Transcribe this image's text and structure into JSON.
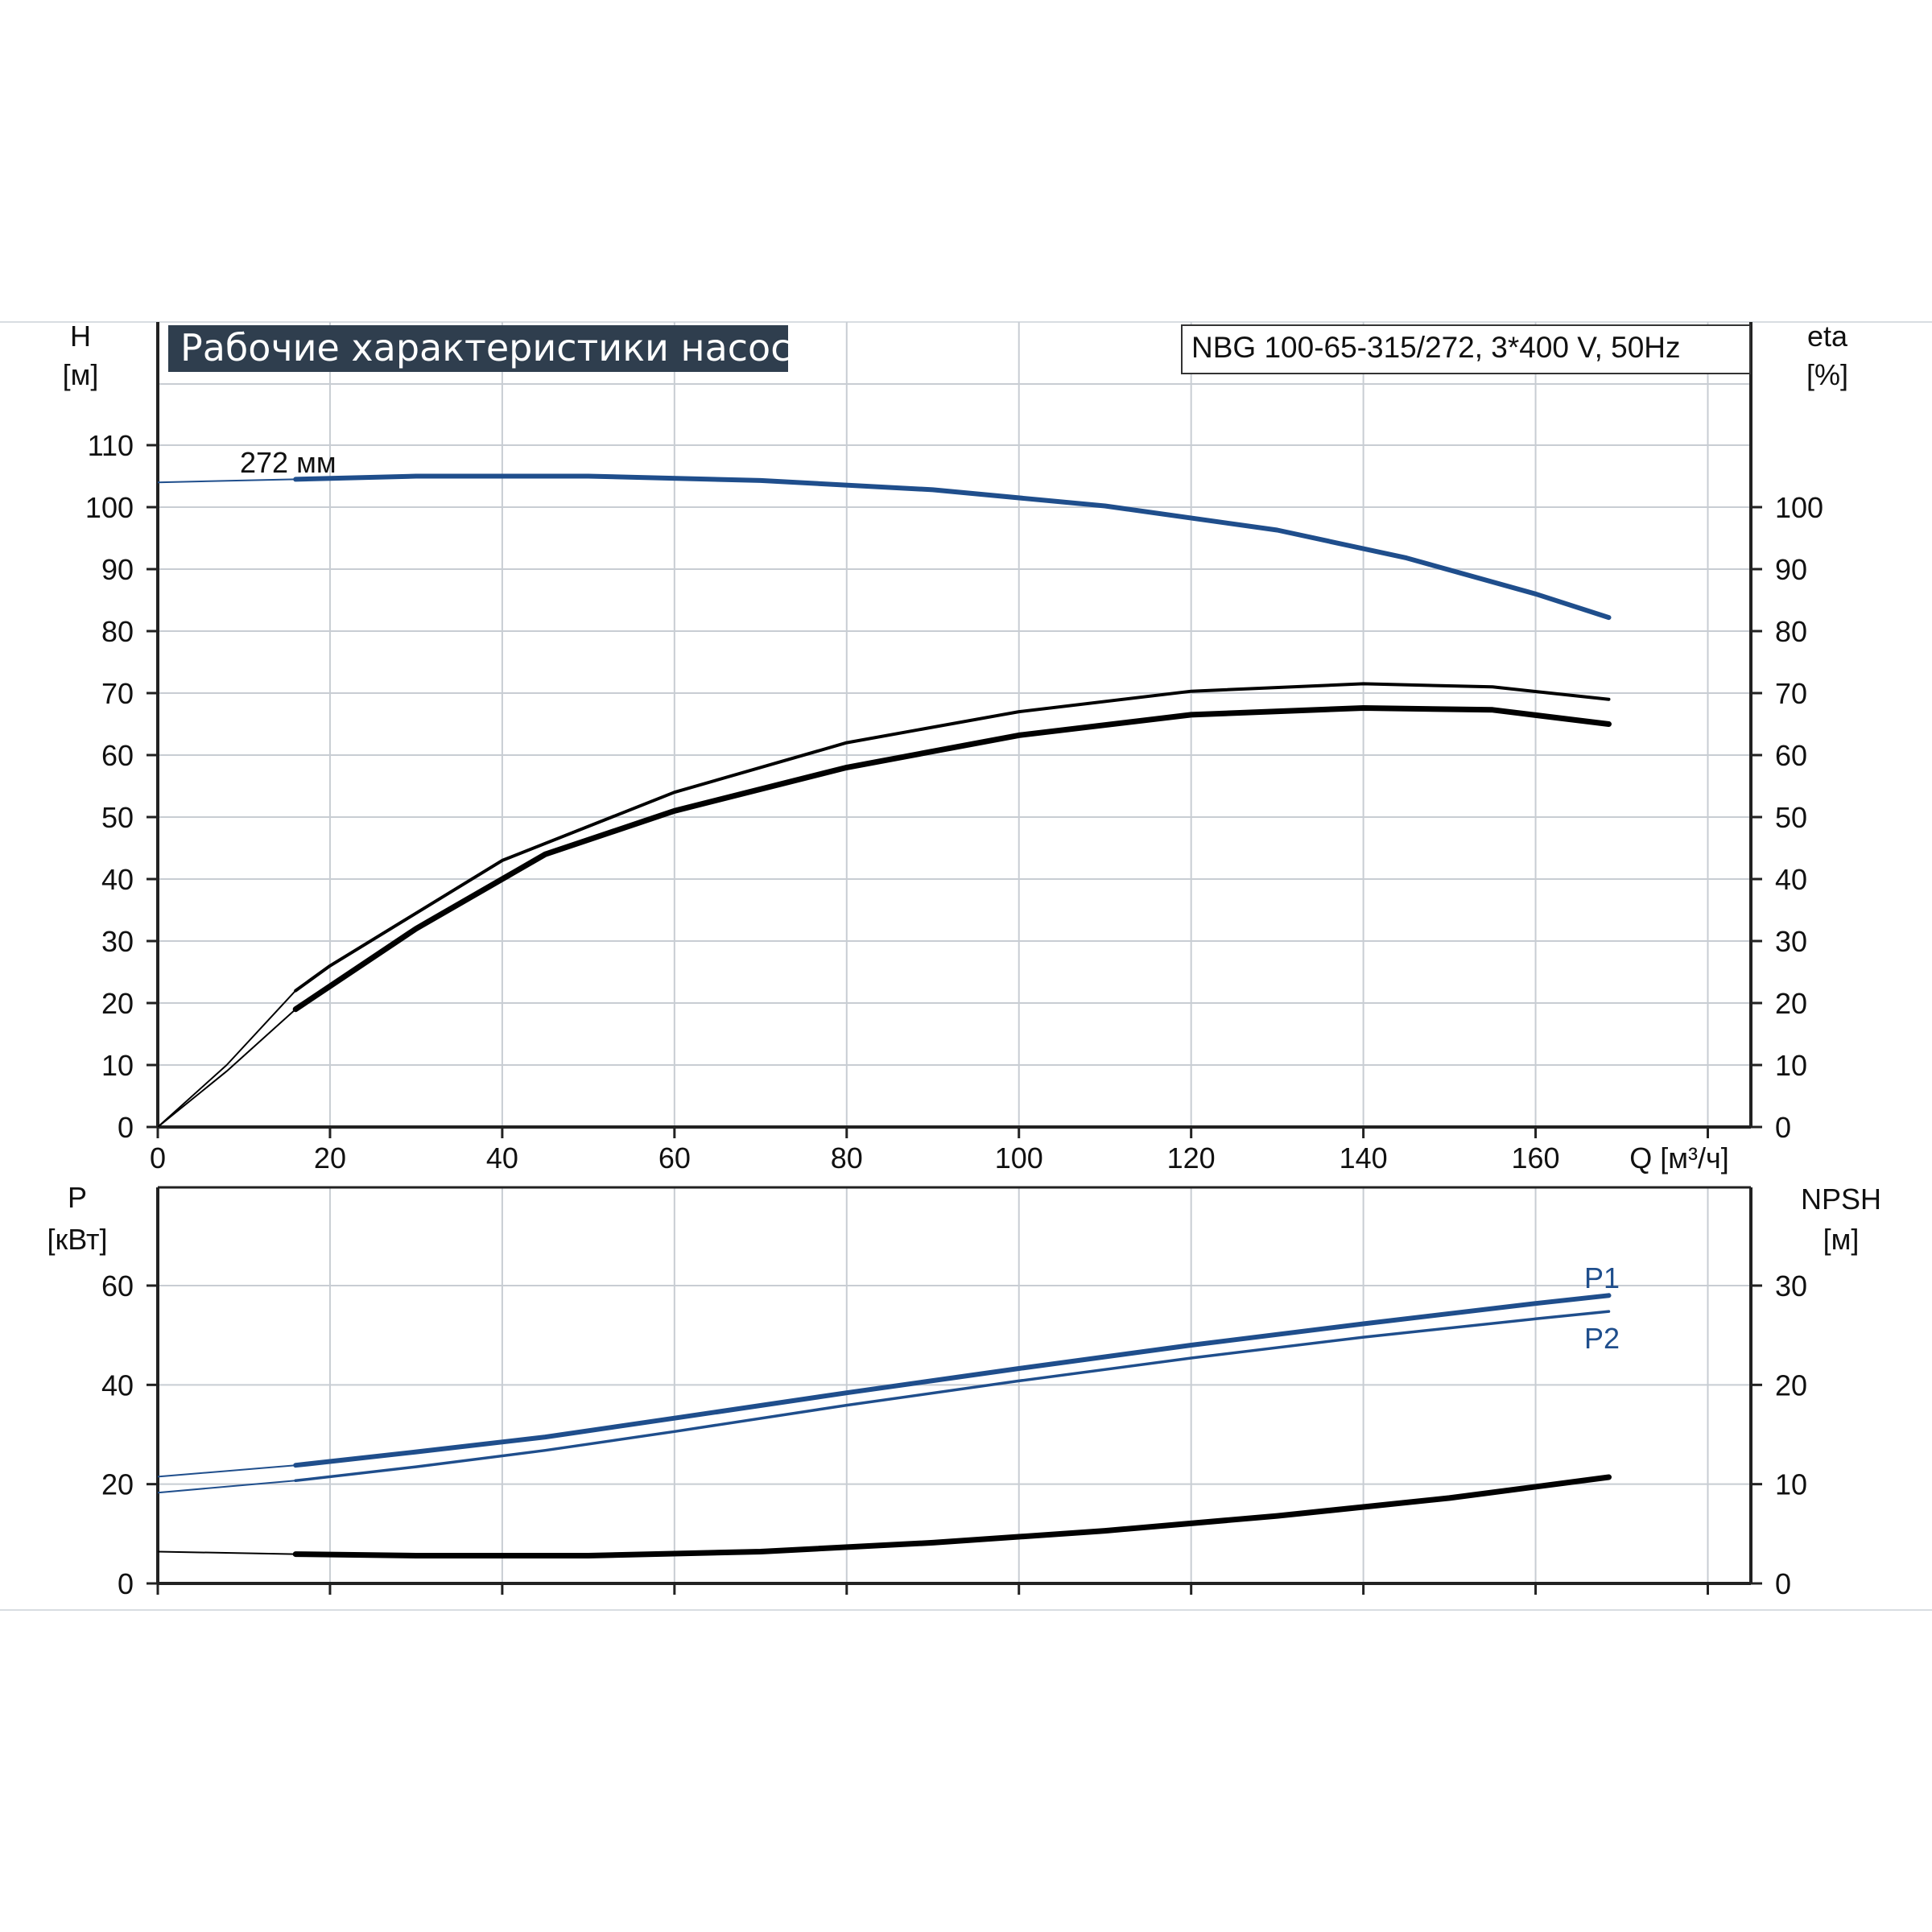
{
  "title": "Рабочие характеристики насоса",
  "model": "NBG 100-65-315/272, 3*400 V, 50Hz",
  "colors": {
    "blue": "#1f4e8c",
    "black": "#000000",
    "grid": "#c8cdd3",
    "title_bg": "#2f3e4e"
  },
  "chart_data": [
    {
      "id": "upper",
      "type": "line",
      "x_axis": {
        "label": "Q [м³/ч]",
        "range": [
          0,
          185
        ],
        "ticks": [
          0,
          20,
          40,
          60,
          80,
          100,
          120,
          140,
          160
        ],
        "extra_grid": [
          180
        ]
      },
      "y_left": {
        "label_top": "H",
        "label_unit": "[м]",
        "range": [
          0,
          120
        ],
        "ticks": [
          0,
          10,
          20,
          30,
          40,
          50,
          60,
          70,
          80,
          90,
          100,
          110
        ]
      },
      "y_right": {
        "label_top": "eta",
        "label_unit": "[%]",
        "range": [
          0,
          120
        ],
        "ticks": [
          0,
          10,
          20,
          30,
          40,
          50,
          60,
          70,
          80,
          90,
          100
        ]
      },
      "grid": true,
      "annotations": [
        {
          "text": "272 мм",
          "x": 10,
          "y": 107
        }
      ],
      "series": [
        {
          "axis": "left",
          "color": "blue",
          "thin": [
            [
              0,
              104
            ],
            [
              16,
              104.5
            ]
          ],
          "thick": [
            [
              16,
              104.5
            ],
            [
              30,
              105
            ],
            [
              50,
              105
            ],
            [
              70,
              104.3
            ],
            [
              90,
              102.8
            ],
            [
              110,
              100.2
            ],
            [
              130,
              96.3
            ],
            [
              145,
              91.8
            ],
            [
              160,
              86
            ],
            [
              168.5,
              82.2
            ]
          ]
        },
        {
          "axis": "right",
          "color": "black",
          "thin": [
            [
              0,
              0
            ],
            [
              8,
              10
            ],
            [
              16,
              22
            ]
          ],
          "thick": [
            [
              16,
              22
            ],
            [
              20,
              26
            ],
            [
              40,
              43
            ],
            [
              60,
              54
            ],
            [
              80,
              62
            ],
            [
              100,
              67
            ],
            [
              120,
              70.3
            ],
            [
              140,
              71.5
            ],
            [
              155,
              71
            ],
            [
              168.5,
              69
            ]
          ],
          "width": 4
        },
        {
          "axis": "right",
          "color": "black",
          "thin": [
            [
              0,
              0
            ],
            [
              8,
              9
            ],
            [
              16,
              19
            ]
          ],
          "thick": [
            [
              16,
              19
            ],
            [
              30,
              32
            ],
            [
              45,
              44
            ],
            [
              60,
              51
            ],
            [
              80,
              58
            ],
            [
              100,
              63.2
            ],
            [
              120,
              66.5
            ],
            [
              140,
              67.6
            ],
            [
              155,
              67.3
            ],
            [
              168.5,
              65
            ]
          ],
          "width": 7
        }
      ]
    },
    {
      "id": "lower",
      "type": "line",
      "x_axis": {
        "range": [
          0,
          185
        ],
        "grid": [
          0,
          20,
          40,
          60,
          80,
          100,
          120,
          140,
          160,
          180
        ]
      },
      "y_left": {
        "label_top": "P",
        "label_unit": "[кВт]",
        "range": [
          0,
          80
        ],
        "ticks": [
          0,
          20,
          40,
          60
        ]
      },
      "y_right": {
        "label_top": "NPSH",
        "label_unit": "[м]",
        "range": [
          0,
          40
        ],
        "ticks": [
          0,
          10,
          20,
          30
        ]
      },
      "grid": true,
      "series": [
        {
          "name": "P1",
          "axis": "left",
          "color": "blue",
          "thin": [
            [
              0,
              21.5
            ],
            [
              16,
              23.8
            ]
          ],
          "thick": [
            [
              16,
              23.8
            ],
            [
              30,
              26.5
            ],
            [
              45,
              29.5
            ],
            [
              60,
              33.3
            ],
            [
              80,
              38.4
            ],
            [
              100,
              43.3
            ],
            [
              120,
              48
            ],
            [
              140,
              52.3
            ],
            [
              160,
              56.4
            ],
            [
              168.5,
              58
            ]
          ],
          "width": 6
        },
        {
          "name": "P2",
          "axis": "left",
          "color": "blue",
          "thin": [
            [
              0,
              18.3
            ],
            [
              16,
              20.7
            ]
          ],
          "thick": [
            [
              16,
              20.7
            ],
            [
              30,
              23.5
            ],
            [
              45,
              26.8
            ],
            [
              60,
              30.6
            ],
            [
              80,
              35.9
            ],
            [
              100,
              40.8
            ],
            [
              120,
              45.4
            ],
            [
              140,
              49.6
            ],
            [
              160,
              53.3
            ],
            [
              168.5,
              54.8
            ]
          ],
          "width": 3.5
        },
        {
          "name": "NPSH",
          "axis": "right",
          "color": "black",
          "thin": [
            [
              0,
              3.2
            ],
            [
              16,
              2.95
            ]
          ],
          "thick": [
            [
              16,
              2.95
            ],
            [
              30,
              2.8
            ],
            [
              50,
              2.8
            ],
            [
              70,
              3.2
            ],
            [
              90,
              4.1
            ],
            [
              110,
              5.3
            ],
            [
              130,
              6.8
            ],
            [
              150,
              8.6
            ],
            [
              168.5,
              10.7
            ]
          ],
          "width": 7
        }
      ]
    }
  ]
}
